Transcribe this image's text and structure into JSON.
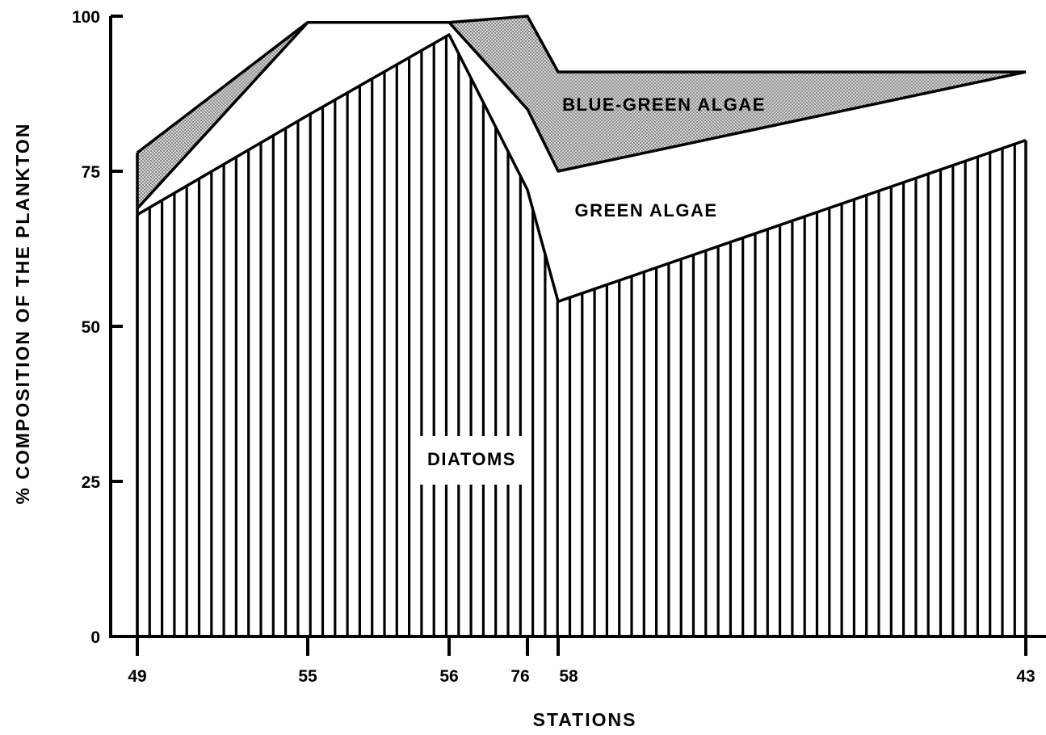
{
  "chart_data": {
    "type": "area",
    "title": "",
    "xlabel": "STATIONS",
    "ylabel": "% COMPOSITION OF THE PLANKTON",
    "ylim": [
      0,
      100
    ],
    "stacked": true,
    "x": [
      "49",
      "55",
      "56",
      "76",
      "58",
      "43"
    ],
    "x_ticks": [
      "49",
      "55",
      "56",
      "76",
      "58",
      "43"
    ],
    "y_ticks": [
      "0",
      "25",
      "50",
      "75",
      "100"
    ],
    "series": [
      {
        "name": "DIATOMS",
        "pattern": "vertical-hatch",
        "cumulative_top": [
          68,
          84,
          97,
          72,
          54,
          80
        ]
      },
      {
        "name": "GREEN ALGAE",
        "pattern": "blank",
        "cumulative_top": [
          69,
          99,
          99,
          85,
          75,
          91
        ]
      },
      {
        "name": "BLUE-GREEN ALGAE",
        "pattern": "stipple",
        "cumulative_top": [
          78,
          99,
          99,
          100,
          91,
          91
        ]
      }
    ],
    "annotations": [
      "BLUE-GREEN ALGAE",
      "GREEN ALGAE",
      "DIATOMS"
    ],
    "colors": {
      "ink": "#000000",
      "background": "#ffffff",
      "stipple": "#9a9a9a"
    }
  }
}
